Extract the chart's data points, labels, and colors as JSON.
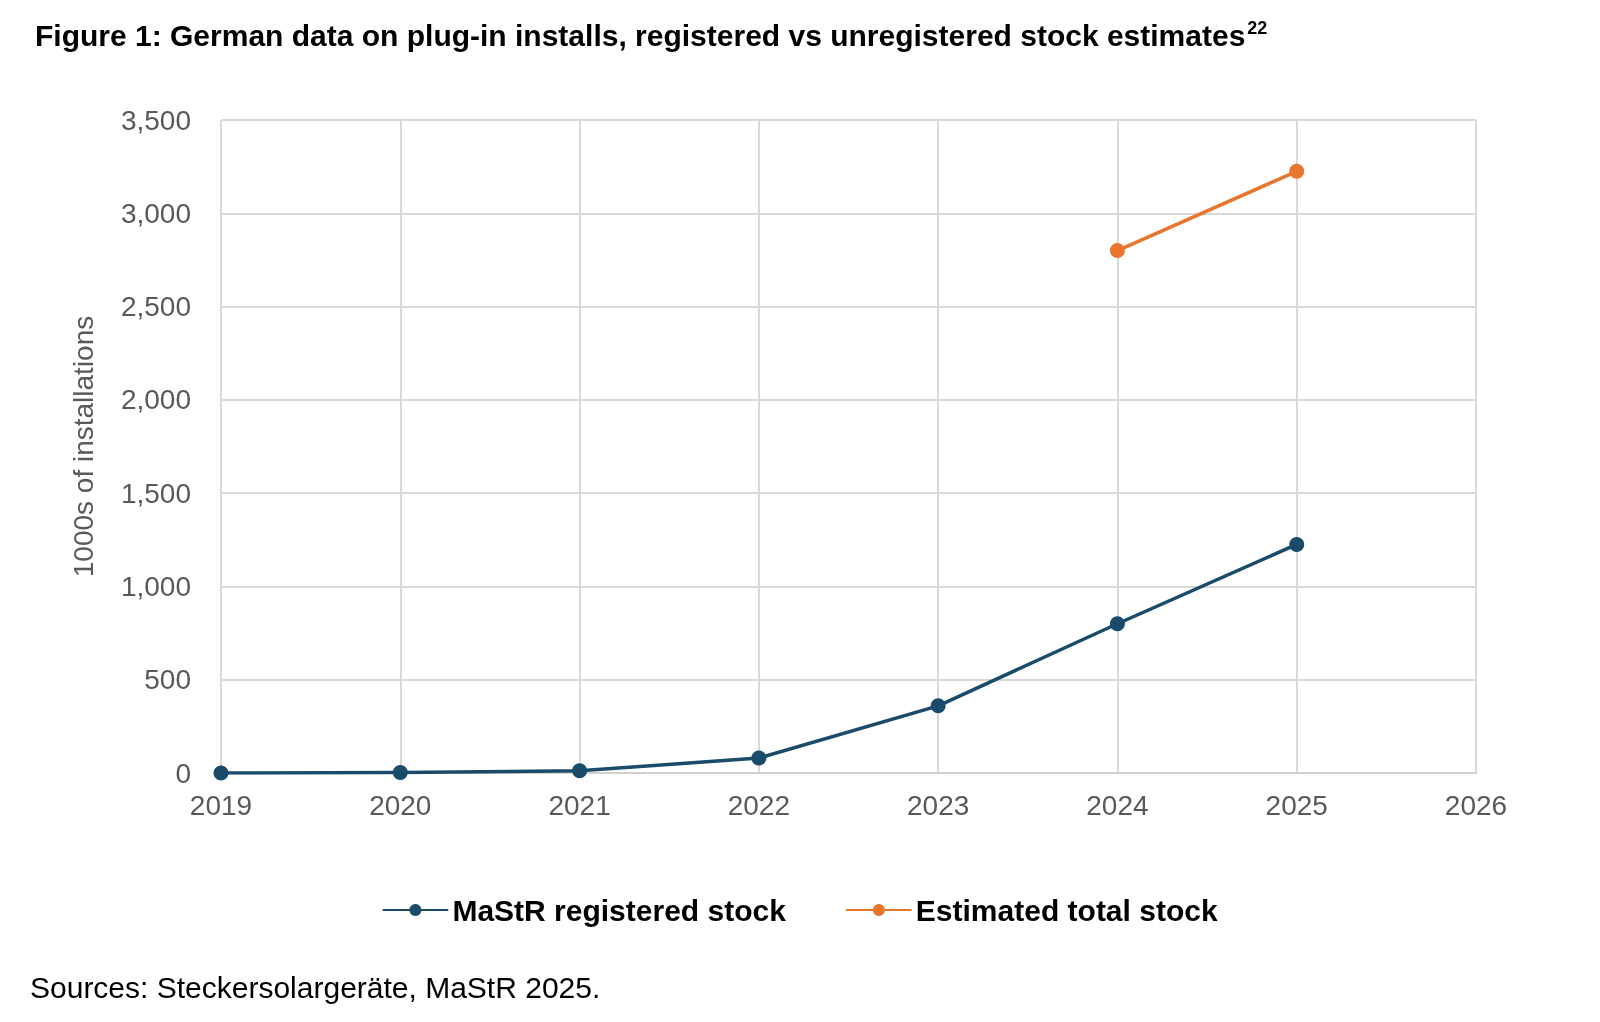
{
  "chart_data": {
    "type": "line",
    "title": "Figure 1: German data on plug-in installs, registered vs unregistered stock estimates$^{22}$",
    "ylabel": "1000s of installations",
    "x": [
      2019,
      2020,
      2021,
      2022,
      2023,
      2024,
      2025
    ],
    "series": [
      {
        "name": "MaStR registered stock",
        "color": "#1a4b6b",
        "values": [
          0,
          3,
          12,
          80,
          360,
          800,
          1225
        ]
      },
      {
        "name": "Estimated total stock",
        "color": "#e8762d",
        "values": [
          null,
          null,
          null,
          null,
          null,
          2800,
          3225
        ]
      }
    ],
    "xlim": [
      2019,
      2026
    ],
    "xticks": [
      2019,
      2020,
      2021,
      2022,
      2023,
      2024,
      2025,
      2026
    ],
    "ylim": [
      0,
      3500
    ],
    "yticks": [
      0,
      500,
      {
        "value": 1000,
        "label": "1,000"
      },
      {
        "value": 1500,
        "label": "1,500"
      },
      {
        "value": 2000,
        "label": "2,000"
      },
      {
        "value": 2500,
        "label": "2,500"
      },
      {
        "value": 3000,
        "label": "3,000"
      },
      {
        "value": 3500,
        "label": "3,500"
      }
    ],
    "grid": true,
    "legend": "bottom",
    "marker": "circle",
    "line_style": "solid",
    "annotations": [
      "Sources: Steckersolargeräte, MaStR 2025."
    ]
  }
}
